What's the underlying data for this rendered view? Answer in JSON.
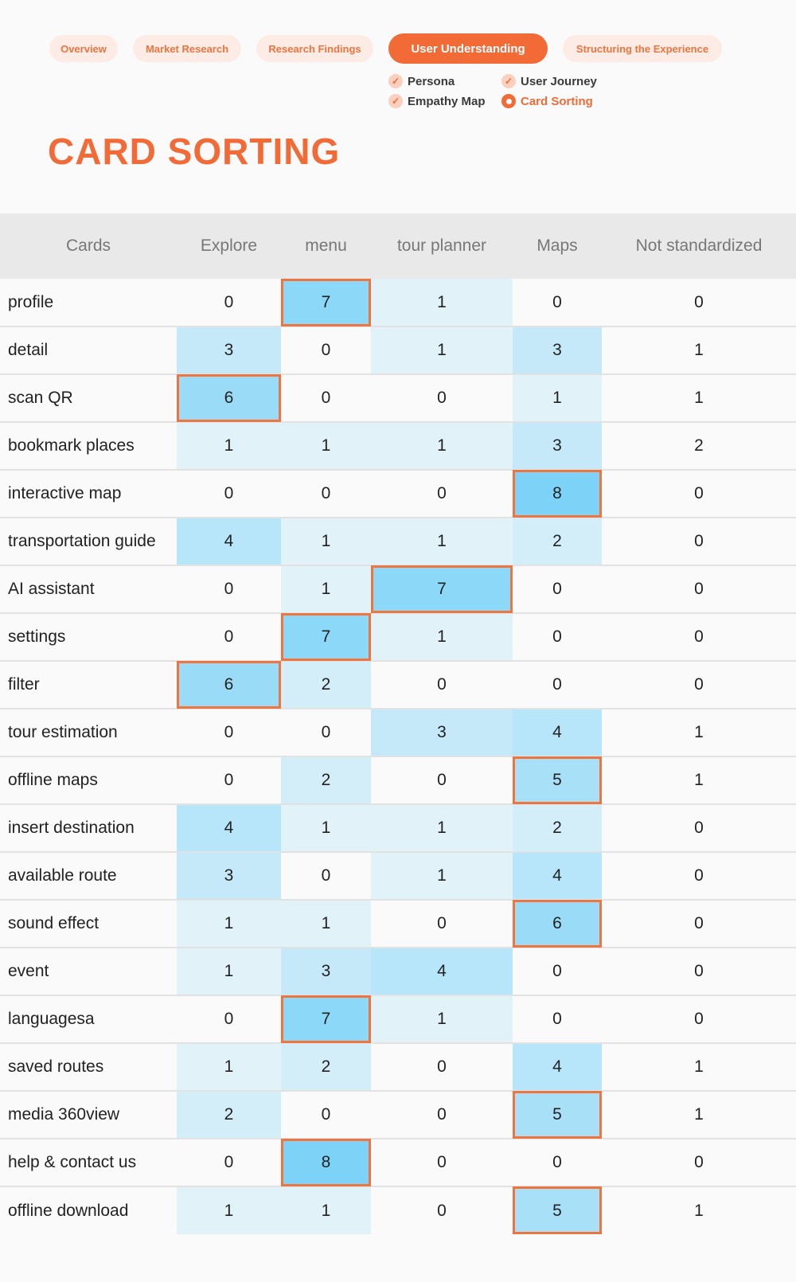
{
  "nav": {
    "tabs": [
      {
        "label": "Overview",
        "active": false
      },
      {
        "label": "Market Research",
        "active": false
      },
      {
        "label": "Research Findings",
        "active": false
      },
      {
        "label": "User Understanding",
        "active": true
      },
      {
        "label": "Structuring the Experience",
        "active": false
      }
    ],
    "subtabs": [
      {
        "label": "Persona",
        "state": "done"
      },
      {
        "label": "User Journey",
        "state": "done"
      },
      {
        "label": "Empathy Map",
        "state": "done"
      },
      {
        "label": "Card Sorting",
        "state": "current"
      }
    ]
  },
  "page_title": "CARD SORTING",
  "colors": {
    "accent": "#f26a36",
    "highlight": "#f0743e",
    "heat_max": "#7dd3f7"
  },
  "table": {
    "headers": [
      "Cards",
      "Explore",
      "menu",
      "tour planner",
      "Maps",
      "Not standardized"
    ],
    "rows": [
      {
        "card": "profile",
        "values": [
          0,
          7,
          1,
          0,
          0
        ]
      },
      {
        "card": "detail",
        "values": [
          3,
          0,
          1,
          3,
          1
        ]
      },
      {
        "card": "scan QR",
        "values": [
          6,
          0,
          0,
          1,
          1
        ]
      },
      {
        "card": "bookmark places",
        "values": [
          1,
          1,
          1,
          3,
          2
        ]
      },
      {
        "card": "interactive map",
        "values": [
          0,
          0,
          0,
          8,
          0
        ]
      },
      {
        "card": "transportation guide",
        "values": [
          4,
          1,
          1,
          2,
          0
        ]
      },
      {
        "card": "AI assistant",
        "values": [
          0,
          1,
          7,
          0,
          0
        ]
      },
      {
        "card": "settings",
        "values": [
          0,
          7,
          1,
          0,
          0
        ]
      },
      {
        "card": "filter",
        "values": [
          6,
          2,
          0,
          0,
          0
        ]
      },
      {
        "card": "tour estimation",
        "values": [
          0,
          0,
          3,
          4,
          1
        ]
      },
      {
        "card": "offline maps",
        "values": [
          0,
          2,
          0,
          5,
          1
        ]
      },
      {
        "card": "insert destination",
        "values": [
          4,
          1,
          1,
          2,
          0
        ]
      },
      {
        "card": "available route",
        "values": [
          3,
          0,
          1,
          4,
          0
        ]
      },
      {
        "card": "sound effect",
        "values": [
          1,
          1,
          0,
          6,
          0
        ]
      },
      {
        "card": "event",
        "values": [
          1,
          3,
          4,
          0,
          0
        ]
      },
      {
        "card": "languagesa",
        "values": [
          0,
          7,
          1,
          0,
          0
        ]
      },
      {
        "card": "saved routes",
        "values": [
          1,
          2,
          0,
          4,
          1
        ]
      },
      {
        "card": "media 360view",
        "values": [
          2,
          0,
          0,
          5,
          1
        ]
      },
      {
        "card": "help & contact us",
        "values": [
          0,
          8,
          0,
          0,
          0
        ]
      },
      {
        "card": "offline download",
        "values": [
          1,
          1,
          0,
          5,
          1
        ]
      }
    ]
  }
}
